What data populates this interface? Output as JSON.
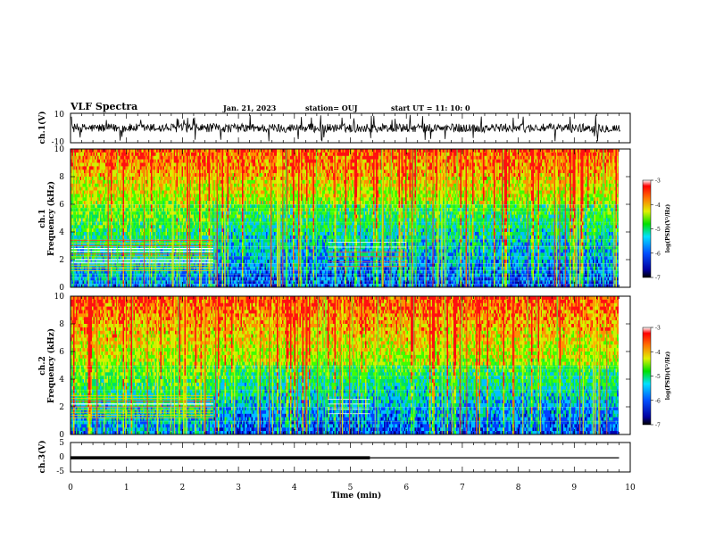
{
  "header": {
    "title": "VLF Spectra",
    "date": "Jan. 21, 2023",
    "station": "station= OUJ",
    "start": "start  UT =   11: 10: 0"
  },
  "chart_data": [
    {
      "type": "line",
      "name": "ch1-waveform",
      "ylabel": "ch.1(V)",
      "ylim": [
        -10,
        10
      ],
      "yticks": [
        "10",
        "-10"
      ],
      "xlim": [
        0,
        10
      ],
      "description_values": {
        "baseline": 0,
        "typical_amplitude": 3,
        "spike_max": 9
      }
    },
    {
      "type": "heatmap",
      "name": "ch1-spectrogram",
      "ylabel_top": "ch.1",
      "ylabel": "Frequency (kHz)",
      "ylim": [
        0,
        10
      ],
      "yticks": [
        "0",
        "2",
        "4",
        "6",
        "8",
        "10"
      ],
      "xlim": [
        0,
        9.8
      ],
      "colorbar": {
        "label": "log(PSD)(V²/Hz)",
        "ticks": [
          "-3",
          "-4",
          "-5",
          "-6",
          "-7"
        ],
        "range": [
          -7,
          -3
        ]
      },
      "features": {
        "band_end_min": 2.55,
        "band_low_khz": [
          1.2,
          3.6
        ],
        "quiet_threshold_khz": 6
      }
    },
    {
      "type": "heatmap",
      "name": "ch2-spectrogram",
      "ylabel_top": "ch.2",
      "ylabel": "Frequency (kHz)",
      "ylim": [
        0,
        10
      ],
      "yticks": [
        "0",
        "2",
        "4",
        "6",
        "8",
        "10"
      ],
      "xlim": [
        0,
        9.8
      ],
      "colorbar": {
        "label": "log(PSD)(V²/Hz)",
        "ticks": [
          "-3",
          "-4",
          "-5",
          "-6",
          "-7"
        ],
        "range": [
          -7,
          -3
        ]
      },
      "features": {
        "band_end_min": 2.55,
        "band_low_khz": [
          1.2,
          3.0
        ],
        "quiet_threshold_khz": 5
      }
    },
    {
      "type": "line",
      "name": "ch3-signal",
      "ylabel": "ch.3(V)",
      "ylim": [
        -5,
        5
      ],
      "yticks": [
        "5",
        "0",
        "-5"
      ],
      "xlim": [
        0,
        10
      ],
      "segments": [
        {
          "x": [
            0,
            5.35
          ],
          "y": -0.2,
          "thick": true
        },
        {
          "x": [
            5.35,
            9.8
          ],
          "y": -0.2,
          "thick": false
        }
      ]
    }
  ],
  "xaxis": {
    "label": "Time (min)",
    "ticks": [
      "0",
      "1",
      "2",
      "3",
      "4",
      "5",
      "6",
      "7",
      "8",
      "9",
      "10"
    ],
    "range": [
      0,
      10
    ]
  }
}
